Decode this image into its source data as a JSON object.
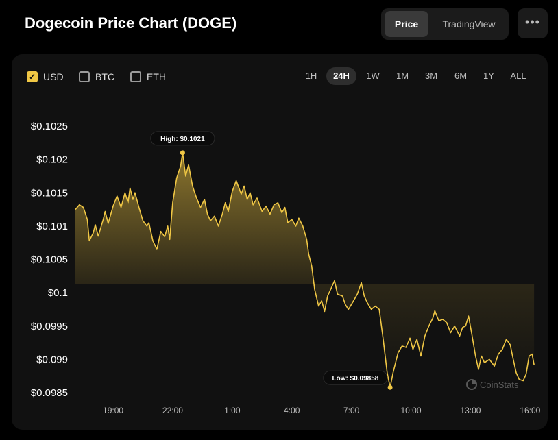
{
  "header": {
    "title": "Dogecoin Price Chart (DOGE)"
  },
  "view_toggle": {
    "price_label": "Price",
    "tradingview_label": "TradingView"
  },
  "more_label": "•••",
  "currencies": [
    {
      "label": "USD",
      "checked": true
    },
    {
      "label": "BTC",
      "checked": false
    },
    {
      "label": "ETH",
      "checked": false
    }
  ],
  "ranges": [
    "1H",
    "24H",
    "1W",
    "1M",
    "3M",
    "6M",
    "1Y",
    "ALL"
  ],
  "active_range": "24H",
  "watermark": "CoinStats",
  "colors": {
    "accent": "#f0c745",
    "background": "#000000",
    "panel": "#111111"
  },
  "chart_data": {
    "type": "area",
    "title": "",
    "xlabel": "",
    "ylabel": "",
    "ylim": [
      0.0985,
      0.1025
    ],
    "yticks": [
      0.0985,
      0.099,
      0.0995,
      0.1,
      0.1005,
      0.101,
      0.1015,
      0.102,
      0.1025
    ],
    "ytick_labels": [
      "$0.0985",
      "$0.099",
      "$0.0995",
      "$0.1",
      "$0.1005",
      "$0.101",
      "$0.1015",
      "$0.102",
      "$0.1025"
    ],
    "xlim": [
      17.1,
      40.3
    ],
    "xticks": [
      19,
      22,
      25,
      28,
      31,
      34,
      37,
      40
    ],
    "xtick_labels": [
      "19:00",
      "22:00",
      "1:00",
      "4:00",
      "7:00",
      "10:00",
      "13:00",
      "16:00"
    ],
    "x_unit": "hours (tick labels show clock time)",
    "series": [
      {
        "color": "#f0c745",
        "points": [
          [
            17.1,
            0.10125
          ],
          [
            17.3,
            0.10132
          ],
          [
            17.5,
            0.10128
          ],
          [
            17.7,
            0.1011
          ],
          [
            17.8,
            0.10078
          ],
          [
            18.0,
            0.1009
          ],
          [
            18.1,
            0.10102
          ],
          [
            18.25,
            0.10085
          ],
          [
            18.5,
            0.1011
          ],
          [
            18.6,
            0.10122
          ],
          [
            18.75,
            0.10104
          ],
          [
            19.0,
            0.1013
          ],
          [
            19.2,
            0.10145
          ],
          [
            19.4,
            0.10128
          ],
          [
            19.6,
            0.1015
          ],
          [
            19.75,
            0.10135
          ],
          [
            19.85,
            0.10157
          ],
          [
            20.0,
            0.1014
          ],
          [
            20.1,
            0.1015
          ],
          [
            20.3,
            0.10128
          ],
          [
            20.5,
            0.10108
          ],
          [
            20.7,
            0.101
          ],
          [
            20.8,
            0.10105
          ],
          [
            21.0,
            0.10078
          ],
          [
            21.2,
            0.10065
          ],
          [
            21.4,
            0.10092
          ],
          [
            21.6,
            0.10084
          ],
          [
            21.75,
            0.101
          ],
          [
            21.85,
            0.1008
          ],
          [
            22.0,
            0.10135
          ],
          [
            22.2,
            0.10172
          ],
          [
            22.4,
            0.1019
          ],
          [
            22.5,
            0.1021
          ],
          [
            22.65,
            0.10175
          ],
          [
            22.8,
            0.10192
          ],
          [
            23.0,
            0.1016
          ],
          [
            23.2,
            0.10142
          ],
          [
            23.4,
            0.10128
          ],
          [
            23.6,
            0.1014
          ],
          [
            23.75,
            0.10118
          ],
          [
            23.9,
            0.10108
          ],
          [
            24.1,
            0.10115
          ],
          [
            24.3,
            0.101
          ],
          [
            24.5,
            0.10118
          ],
          [
            24.65,
            0.10135
          ],
          [
            24.8,
            0.10122
          ],
          [
            25.0,
            0.10152
          ],
          [
            25.2,
            0.10168
          ],
          [
            25.45,
            0.10148
          ],
          [
            25.6,
            0.1016
          ],
          [
            25.75,
            0.1014
          ],
          [
            25.9,
            0.1015
          ],
          [
            26.05,
            0.10132
          ],
          [
            26.25,
            0.10142
          ],
          [
            26.5,
            0.10122
          ],
          [
            26.7,
            0.1013
          ],
          [
            26.9,
            0.10118
          ],
          [
            27.1,
            0.10132
          ],
          [
            27.3,
            0.10135
          ],
          [
            27.5,
            0.1012
          ],
          [
            27.65,
            0.10128
          ],
          [
            27.8,
            0.10105
          ],
          [
            28.0,
            0.1011
          ],
          [
            28.2,
            0.101
          ],
          [
            28.35,
            0.10112
          ],
          [
            28.55,
            0.101
          ],
          [
            28.75,
            0.1008
          ],
          [
            28.85,
            0.10058
          ],
          [
            29.0,
            0.1004
          ],
          [
            29.15,
            0.10005
          ],
          [
            29.35,
            0.0998
          ],
          [
            29.5,
            0.09988
          ],
          [
            29.65,
            0.09972
          ],
          [
            29.8,
            0.09995
          ],
          [
            30.0,
            0.10008
          ],
          [
            30.15,
            0.10018
          ],
          [
            30.3,
            0.09998
          ],
          [
            30.55,
            0.09995
          ],
          [
            30.7,
            0.09982
          ],
          [
            30.85,
            0.09975
          ],
          [
            31.05,
            0.09985
          ],
          [
            31.3,
            0.09998
          ],
          [
            31.5,
            0.10015
          ],
          [
            31.65,
            0.09995
          ],
          [
            31.8,
            0.09985
          ],
          [
            32.0,
            0.09975
          ],
          [
            32.2,
            0.0998
          ],
          [
            32.4,
            0.09975
          ],
          [
            32.6,
            0.0993
          ],
          [
            32.8,
            0.0988
          ],
          [
            32.95,
            0.09858
          ],
          [
            33.1,
            0.0988
          ],
          [
            33.35,
            0.0991
          ],
          [
            33.55,
            0.0992
          ],
          [
            33.75,
            0.09918
          ],
          [
            33.95,
            0.09932
          ],
          [
            34.1,
            0.09915
          ],
          [
            34.3,
            0.0993
          ],
          [
            34.5,
            0.09905
          ],
          [
            34.7,
            0.09935
          ],
          [
            34.9,
            0.0995
          ],
          [
            35.1,
            0.09962
          ],
          [
            35.2,
            0.09973
          ],
          [
            35.4,
            0.09958
          ],
          [
            35.6,
            0.0996
          ],
          [
            35.8,
            0.09955
          ],
          [
            36.0,
            0.0994
          ],
          [
            36.2,
            0.0995
          ],
          [
            36.45,
            0.09935
          ],
          [
            36.6,
            0.09948
          ],
          [
            36.75,
            0.0995
          ],
          [
            36.9,
            0.09965
          ],
          [
            37.05,
            0.0994
          ],
          [
            37.25,
            0.09905
          ],
          [
            37.4,
            0.09885
          ],
          [
            37.55,
            0.09905
          ],
          [
            37.7,
            0.09895
          ],
          [
            37.95,
            0.099
          ],
          [
            38.2,
            0.0989
          ],
          [
            38.4,
            0.09908
          ],
          [
            38.6,
            0.09915
          ],
          [
            38.8,
            0.0993
          ],
          [
            39.0,
            0.09922
          ],
          [
            39.15,
            0.099
          ],
          [
            39.3,
            0.0988
          ],
          [
            39.45,
            0.0987
          ],
          [
            39.65,
            0.09868
          ],
          [
            39.8,
            0.09878
          ],
          [
            39.95,
            0.09905
          ],
          [
            40.1,
            0.09908
          ],
          [
            40.2,
            0.09892
          ]
        ]
      }
    ],
    "annotations": [
      {
        "label": "High: $0.1021",
        "x": 22.5,
        "y": 0.1021,
        "position": "above"
      },
      {
        "label": "Low: $0.09858",
        "x": 32.95,
        "y": 0.09858,
        "position": "left"
      }
    ],
    "grid": false,
    "legend": "none"
  }
}
